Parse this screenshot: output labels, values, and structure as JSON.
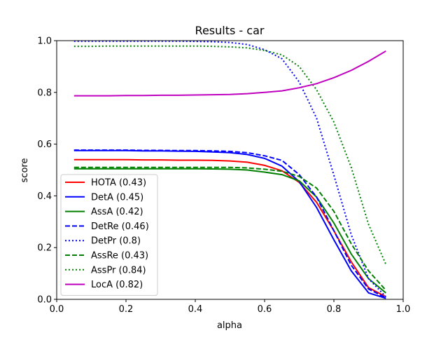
{
  "chart_data": {
    "type": "line",
    "title": "Results - car",
    "xlabel": "alpha",
    "ylabel": "score",
    "xlim": [
      0.0,
      1.0
    ],
    "ylim": [
      0.0,
      1.0
    ],
    "xticks": [
      "0.0",
      "0.2",
      "0.4",
      "0.6",
      "0.8",
      "1.0"
    ],
    "yticks": [
      "0.0",
      "0.2",
      "0.4",
      "0.6",
      "0.8",
      "1.0"
    ],
    "grid": false,
    "legend_position": "lower-left",
    "x": [
      0.05,
      0.1,
      0.15,
      0.2,
      0.25,
      0.3,
      0.35,
      0.4,
      0.45,
      0.5,
      0.55,
      0.6,
      0.65,
      0.7,
      0.75,
      0.8,
      0.85,
      0.9,
      0.95
    ],
    "series": [
      {
        "name": "HOTA (0.43)",
        "color": "#ff0000",
        "dash": "solid",
        "values": [
          0.54,
          0.54,
          0.54,
          0.54,
          0.539,
          0.539,
          0.538,
          0.538,
          0.537,
          0.535,
          0.53,
          0.518,
          0.497,
          0.452,
          0.375,
          0.265,
          0.145,
          0.045,
          0.01
        ]
      },
      {
        "name": "DetA (0.45)",
        "color": "#0000ff",
        "dash": "solid",
        "values": [
          0.575,
          0.575,
          0.575,
          0.575,
          0.574,
          0.574,
          0.573,
          0.572,
          0.57,
          0.567,
          0.56,
          0.545,
          0.515,
          0.455,
          0.355,
          0.23,
          0.11,
          0.025,
          0.004
        ]
      },
      {
        "name": "AssA (0.42)",
        "color": "#008000",
        "dash": "solid",
        "values": [
          0.505,
          0.505,
          0.505,
          0.505,
          0.505,
          0.505,
          0.505,
          0.505,
          0.504,
          0.503,
          0.5,
          0.492,
          0.482,
          0.458,
          0.395,
          0.295,
          0.175,
          0.08,
          0.025
        ]
      },
      {
        "name": "DetRe (0.46)",
        "color": "#0000ff",
        "dash": "dashed",
        "values": [
          0.577,
          0.577,
          0.577,
          0.577,
          0.576,
          0.576,
          0.575,
          0.575,
          0.574,
          0.572,
          0.567,
          0.555,
          0.537,
          0.482,
          0.395,
          0.265,
          0.132,
          0.04,
          0.006
        ]
      },
      {
        "name": "DetPr (0.8)",
        "color": "#0000ff",
        "dash": "dotted",
        "values": [
          0.998,
          0.998,
          0.998,
          0.998,
          0.998,
          0.998,
          0.998,
          0.997,
          0.996,
          0.993,
          0.985,
          0.965,
          0.93,
          0.84,
          0.7,
          0.48,
          0.25,
          0.08,
          0.01
        ]
      },
      {
        "name": "AssRe (0.43)",
        "color": "#008000",
        "dash": "dashed",
        "values": [
          0.51,
          0.51,
          0.51,
          0.51,
          0.51,
          0.51,
          0.51,
          0.51,
          0.51,
          0.51,
          0.508,
          0.503,
          0.495,
          0.475,
          0.43,
          0.34,
          0.215,
          0.11,
          0.035
        ]
      },
      {
        "name": "AssPr (0.84)",
        "color": "#008000",
        "dash": "dotted",
        "values": [
          0.978,
          0.978,
          0.979,
          0.979,
          0.979,
          0.979,
          0.979,
          0.979,
          0.978,
          0.976,
          0.972,
          0.962,
          0.945,
          0.9,
          0.81,
          0.685,
          0.51,
          0.29,
          0.135
        ]
      },
      {
        "name": "LocA (0.82)",
        "color": "#bf00bf",
        "dash": "solid",
        "values": [
          0.787,
          0.787,
          0.787,
          0.788,
          0.788,
          0.789,
          0.789,
          0.79,
          0.791,
          0.792,
          0.795,
          0.8,
          0.806,
          0.818,
          0.834,
          0.857,
          0.885,
          0.92,
          0.96
        ]
      }
    ]
  }
}
